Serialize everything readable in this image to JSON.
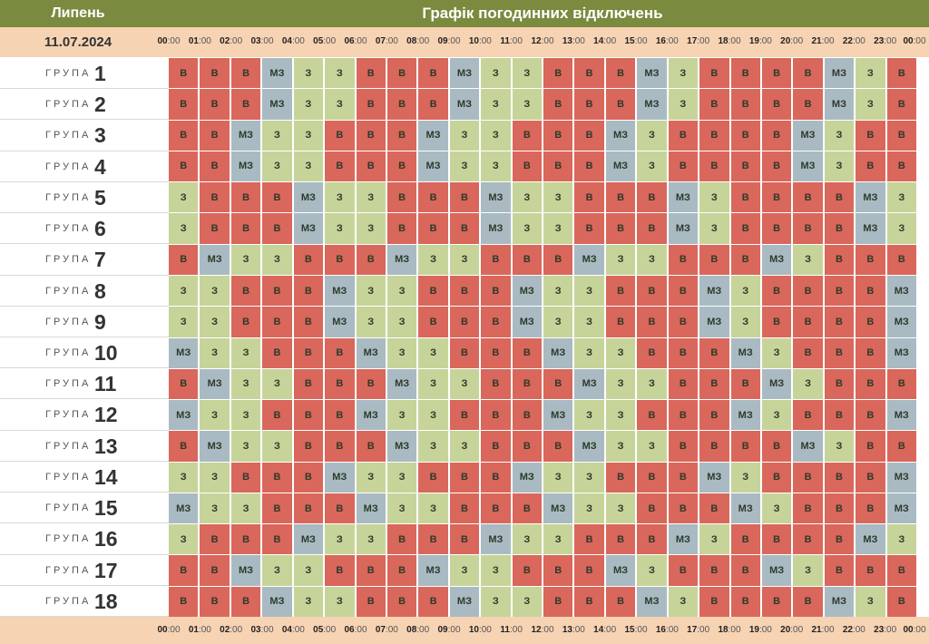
{
  "header": {
    "month": "Липень",
    "title": "Графік погодинних відключень"
  },
  "date": "11.07.2024",
  "hours": [
    "00",
    "01",
    "02",
    "03",
    "04",
    "05",
    "06",
    "07",
    "08",
    "09",
    "10",
    "11",
    "12",
    "13",
    "14",
    "15",
    "16",
    "17",
    "18",
    "19",
    "20",
    "21",
    "22",
    "23",
    "00"
  ],
  "minutes": ":00",
  "group_label": "ГРУПА",
  "status_colors": {
    "В": "#d9675b",
    "З": "#c6d49a",
    "МЗ": "#a9bac3"
  },
  "groups": [
    {
      "num": "1",
      "slots": [
        "В",
        "В",
        "В",
        "МЗ",
        "З",
        "З",
        "В",
        "В",
        "В",
        "МЗ",
        "З",
        "З",
        "В",
        "В",
        "В",
        "МЗ",
        "З",
        "В",
        "В",
        "В",
        "В",
        "МЗ",
        "З",
        "В"
      ]
    },
    {
      "num": "2",
      "slots": [
        "В",
        "В",
        "В",
        "МЗ",
        "З",
        "З",
        "В",
        "В",
        "В",
        "МЗ",
        "З",
        "З",
        "В",
        "В",
        "В",
        "МЗ",
        "З",
        "В",
        "В",
        "В",
        "В",
        "МЗ",
        "З",
        "В"
      ]
    },
    {
      "num": "3",
      "slots": [
        "В",
        "В",
        "МЗ",
        "З",
        "З",
        "В",
        "В",
        "В",
        "МЗ",
        "З",
        "З",
        "В",
        "В",
        "В",
        "МЗ",
        "З",
        "В",
        "В",
        "В",
        "В",
        "МЗ",
        "З",
        "В",
        "В"
      ]
    },
    {
      "num": "4",
      "slots": [
        "В",
        "В",
        "МЗ",
        "З",
        "З",
        "В",
        "В",
        "В",
        "МЗ",
        "З",
        "З",
        "В",
        "В",
        "В",
        "МЗ",
        "З",
        "В",
        "В",
        "В",
        "В",
        "МЗ",
        "З",
        "В",
        "В"
      ]
    },
    {
      "num": "5",
      "slots": [
        "З",
        "В",
        "В",
        "В",
        "МЗ",
        "З",
        "З",
        "В",
        "В",
        "В",
        "МЗ",
        "З",
        "З",
        "В",
        "В",
        "В",
        "МЗ",
        "З",
        "В",
        "В",
        "В",
        "В",
        "МЗ",
        "З"
      ]
    },
    {
      "num": "6",
      "slots": [
        "З",
        "В",
        "В",
        "В",
        "МЗ",
        "З",
        "З",
        "В",
        "В",
        "В",
        "МЗ",
        "З",
        "З",
        "В",
        "В",
        "В",
        "МЗ",
        "З",
        "В",
        "В",
        "В",
        "В",
        "МЗ",
        "З"
      ]
    },
    {
      "num": "7",
      "slots": [
        "В",
        "МЗ",
        "З",
        "З",
        "В",
        "В",
        "В",
        "МЗ",
        "З",
        "З",
        "В",
        "В",
        "В",
        "МЗ",
        "З",
        "З",
        "В",
        "В",
        "В",
        "МЗ",
        "З",
        "В",
        "В",
        "В"
      ]
    },
    {
      "num": "8",
      "slots": [
        "З",
        "З",
        "В",
        "В",
        "В",
        "МЗ",
        "З",
        "З",
        "В",
        "В",
        "В",
        "МЗ",
        "З",
        "З",
        "В",
        "В",
        "В",
        "МЗ",
        "З",
        "В",
        "В",
        "В",
        "В",
        "МЗ"
      ]
    },
    {
      "num": "9",
      "slots": [
        "З",
        "З",
        "В",
        "В",
        "В",
        "МЗ",
        "З",
        "З",
        "В",
        "В",
        "В",
        "МЗ",
        "З",
        "З",
        "В",
        "В",
        "В",
        "МЗ",
        "З",
        "В",
        "В",
        "В",
        "В",
        "МЗ"
      ]
    },
    {
      "num": "10",
      "slots": [
        "МЗ",
        "З",
        "З",
        "В",
        "В",
        "В",
        "МЗ",
        "З",
        "З",
        "В",
        "В",
        "В",
        "МЗ",
        "З",
        "З",
        "В",
        "В",
        "В",
        "МЗ",
        "З",
        "В",
        "В",
        "В",
        "МЗ"
      ]
    },
    {
      "num": "11",
      "slots": [
        "В",
        "МЗ",
        "З",
        "З",
        "В",
        "В",
        "В",
        "МЗ",
        "З",
        "З",
        "В",
        "В",
        "В",
        "МЗ",
        "З",
        "З",
        "В",
        "В",
        "В",
        "МЗ",
        "З",
        "В",
        "В",
        "В"
      ]
    },
    {
      "num": "12",
      "slots": [
        "МЗ",
        "З",
        "З",
        "В",
        "В",
        "В",
        "МЗ",
        "З",
        "З",
        "В",
        "В",
        "В",
        "МЗ",
        "З",
        "З",
        "В",
        "В",
        "В",
        "МЗ",
        "З",
        "В",
        "В",
        "В",
        "МЗ"
      ]
    },
    {
      "num": "13",
      "slots": [
        "В",
        "МЗ",
        "З",
        "З",
        "В",
        "В",
        "В",
        "МЗ",
        "З",
        "З",
        "В",
        "В",
        "В",
        "МЗ",
        "З",
        "З",
        "В",
        "В",
        "В",
        "В",
        "МЗ",
        "З",
        "В",
        "В"
      ]
    },
    {
      "num": "14",
      "slots": [
        "З",
        "З",
        "В",
        "В",
        "В",
        "МЗ",
        "З",
        "З",
        "В",
        "В",
        "В",
        "МЗ",
        "З",
        "З",
        "В",
        "В",
        "В",
        "МЗ",
        "З",
        "В",
        "В",
        "В",
        "В",
        "МЗ"
      ]
    },
    {
      "num": "15",
      "slots": [
        "МЗ",
        "З",
        "З",
        "В",
        "В",
        "В",
        "МЗ",
        "З",
        "З",
        "В",
        "В",
        "В",
        "МЗ",
        "З",
        "З",
        "В",
        "В",
        "В",
        "МЗ",
        "З",
        "В",
        "В",
        "В",
        "МЗ"
      ]
    },
    {
      "num": "16",
      "slots": [
        "З",
        "В",
        "В",
        "В",
        "МЗ",
        "З",
        "З",
        "В",
        "В",
        "В",
        "МЗ",
        "З",
        "З",
        "В",
        "В",
        "В",
        "МЗ",
        "З",
        "В",
        "В",
        "В",
        "В",
        "МЗ",
        "З"
      ]
    },
    {
      "num": "17",
      "slots": [
        "В",
        "В",
        "МЗ",
        "З",
        "З",
        "В",
        "В",
        "В",
        "МЗ",
        "З",
        "З",
        "В",
        "В",
        "В",
        "МЗ",
        "З",
        "В",
        "В",
        "В",
        "МЗ",
        "З",
        "В",
        "В",
        "В"
      ]
    },
    {
      "num": "18",
      "slots": [
        "В",
        "В",
        "В",
        "МЗ",
        "З",
        "З",
        "В",
        "В",
        "В",
        "МЗ",
        "З",
        "З",
        "В",
        "В",
        "В",
        "МЗ",
        "З",
        "В",
        "В",
        "В",
        "В",
        "МЗ",
        "З",
        "В"
      ]
    }
  ]
}
